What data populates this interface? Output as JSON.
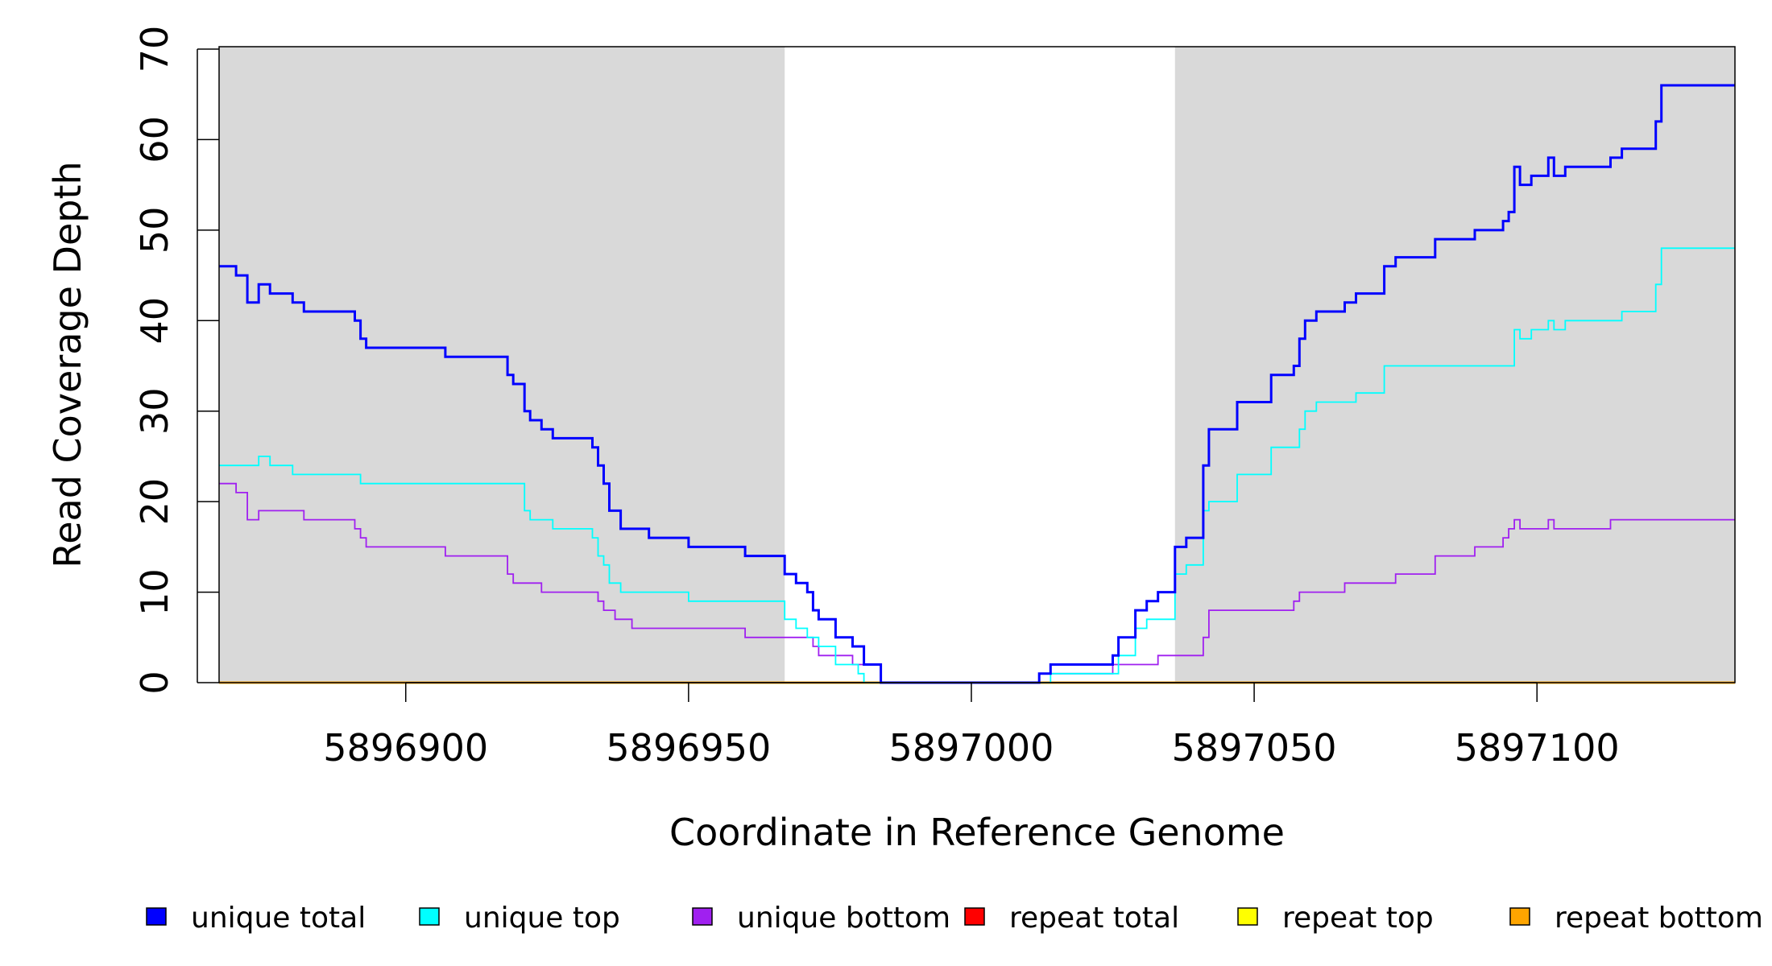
{
  "chart_data": {
    "type": "line",
    "line_shape": "step",
    "xlabel": "Coordinate in Reference Genome",
    "ylabel": "Read Coverage Depth",
    "xlim": [
      5896867,
      5897135
    ],
    "ylim": [
      0,
      70
    ],
    "x_ticks": [
      "5896900",
      "5896950",
      "5897000",
      "5897050",
      "5897100"
    ],
    "y_ticks": [
      "0",
      "10",
      "20",
      "30",
      "40",
      "50",
      "60",
      "70"
    ],
    "grid": false,
    "background_color": "#d9d9d9",
    "shaded_regions": [
      {
        "x": [
          5896867,
          5896967
        ],
        "color": "#d9d9d9"
      },
      {
        "x": [
          5897036,
          5897135
        ],
        "color": "#d9d9d9"
      }
    ],
    "legend_position": "bottom",
    "legend": [
      "unique total",
      "unique top",
      "unique bottom",
      "repeat total",
      "repeat top",
      "repeat bottom"
    ],
    "series": [
      {
        "name": "unique total",
        "color": "#0000ff",
        "points": [
          [
            5896867,
            46
          ],
          [
            5896870,
            45
          ],
          [
            5896872,
            42
          ],
          [
            5896874,
            44
          ],
          [
            5896876,
            43
          ],
          [
            5896880,
            42
          ],
          [
            5896882,
            41
          ],
          [
            5896891,
            40
          ],
          [
            5896892,
            38
          ],
          [
            5896893,
            37
          ],
          [
            5896907,
            36
          ],
          [
            5896918,
            34
          ],
          [
            5896919,
            33
          ],
          [
            5896921,
            30
          ],
          [
            5896922,
            29
          ],
          [
            5896924,
            28
          ],
          [
            5896926,
            27
          ],
          [
            5896933,
            26
          ],
          [
            5896934,
            24
          ],
          [
            5896935,
            22
          ],
          [
            5896936,
            19
          ],
          [
            5896938,
            17
          ],
          [
            5896943,
            16
          ],
          [
            5896950,
            15
          ],
          [
            5896960,
            14
          ],
          [
            5896967,
            12
          ],
          [
            5896969,
            11
          ],
          [
            5896971,
            10
          ],
          [
            5896972,
            8
          ],
          [
            5896973,
            7
          ],
          [
            5896976,
            5
          ],
          [
            5896979,
            4
          ],
          [
            5896981,
            2
          ],
          [
            5896984,
            0
          ],
          [
            5897012,
            1
          ],
          [
            5897014,
            2
          ],
          [
            5897025,
            3
          ],
          [
            5897026,
            5
          ],
          [
            5897029,
            8
          ],
          [
            5897031,
            9
          ],
          [
            5897033,
            10
          ],
          [
            5897036,
            15
          ],
          [
            5897038,
            16
          ],
          [
            5897041,
            24
          ],
          [
            5897042,
            28
          ],
          [
            5897047,
            31
          ],
          [
            5897053,
            34
          ],
          [
            5897057,
            35
          ],
          [
            5897058,
            38
          ],
          [
            5897059,
            40
          ],
          [
            5897061,
            41
          ],
          [
            5897066,
            42
          ],
          [
            5897068,
            43
          ],
          [
            5897073,
            46
          ],
          [
            5897075,
            47
          ],
          [
            5897082,
            49
          ],
          [
            5897089,
            50
          ],
          [
            5897094,
            51
          ],
          [
            5897095,
            52
          ],
          [
            5897096,
            57
          ],
          [
            5897097,
            55
          ],
          [
            5897099,
            56
          ],
          [
            5897102,
            58
          ],
          [
            5897103,
            56
          ],
          [
            5897105,
            57
          ],
          [
            5897113,
            58
          ],
          [
            5897115,
            59
          ],
          [
            5897121,
            62
          ],
          [
            5897122,
            66
          ],
          [
            5897135,
            66
          ]
        ]
      },
      {
        "name": "unique top",
        "color": "#00ffff",
        "points": [
          [
            5896867,
            24
          ],
          [
            5896874,
            25
          ],
          [
            5896876,
            24
          ],
          [
            5896880,
            23
          ],
          [
            5896892,
            22
          ],
          [
            5896921,
            19
          ],
          [
            5896922,
            18
          ],
          [
            5896926,
            17
          ],
          [
            5896933,
            16
          ],
          [
            5896934,
            14
          ],
          [
            5896935,
            13
          ],
          [
            5896936,
            11
          ],
          [
            5896938,
            10
          ],
          [
            5896950,
            9
          ],
          [
            5896967,
            7
          ],
          [
            5896969,
            6
          ],
          [
            5896971,
            5
          ],
          [
            5896973,
            4
          ],
          [
            5896976,
            2
          ],
          [
            5896980,
            1
          ],
          [
            5896981,
            0
          ],
          [
            5897014,
            1
          ],
          [
            5897026,
            3
          ],
          [
            5897029,
            6
          ],
          [
            5897031,
            7
          ],
          [
            5897036,
            12
          ],
          [
            5897038,
            13
          ],
          [
            5897041,
            19
          ],
          [
            5897042,
            20
          ],
          [
            5897047,
            23
          ],
          [
            5897053,
            26
          ],
          [
            5897058,
            28
          ],
          [
            5897059,
            30
          ],
          [
            5897061,
            31
          ],
          [
            5897068,
            32
          ],
          [
            5897073,
            35
          ],
          [
            5897096,
            39
          ],
          [
            5897097,
            38
          ],
          [
            5897099,
            39
          ],
          [
            5897102,
            40
          ],
          [
            5897103,
            39
          ],
          [
            5897105,
            40
          ],
          [
            5897115,
            41
          ],
          [
            5897121,
            44
          ],
          [
            5897122,
            48
          ],
          [
            5897135,
            48
          ]
        ]
      },
      {
        "name": "unique bottom",
        "color": "#a020f0",
        "points": [
          [
            5896867,
            22
          ],
          [
            5896870,
            21
          ],
          [
            5896872,
            18
          ],
          [
            5896874,
            19
          ],
          [
            5896882,
            18
          ],
          [
            5896891,
            17
          ],
          [
            5896892,
            16
          ],
          [
            5896893,
            15
          ],
          [
            5896907,
            14
          ],
          [
            5896918,
            12
          ],
          [
            5896919,
            11
          ],
          [
            5896924,
            10
          ],
          [
            5896934,
            9
          ],
          [
            5896935,
            8
          ],
          [
            5896937,
            7
          ],
          [
            5896940,
            6
          ],
          [
            5896960,
            5
          ],
          [
            5896972,
            4
          ],
          [
            5896973,
            3
          ],
          [
            5896979,
            2
          ],
          [
            5896984,
            0
          ],
          [
            5897012,
            1
          ],
          [
            5897025,
            2
          ],
          [
            5897033,
            3
          ],
          [
            5897041,
            5
          ],
          [
            5897042,
            8
          ],
          [
            5897057,
            9
          ],
          [
            5897058,
            10
          ],
          [
            5897066,
            11
          ],
          [
            5897075,
            12
          ],
          [
            5897082,
            14
          ],
          [
            5897089,
            15
          ],
          [
            5897094,
            16
          ],
          [
            5897095,
            17
          ],
          [
            5897096,
            18
          ],
          [
            5897097,
            17
          ],
          [
            5897102,
            18
          ],
          [
            5897103,
            17
          ],
          [
            5897113,
            18
          ],
          [
            5897135,
            18
          ]
        ]
      },
      {
        "name": "repeat total",
        "color": "#ff0000",
        "points": [
          [
            5896867,
            0
          ],
          [
            5897135,
            0
          ]
        ]
      },
      {
        "name": "repeat top",
        "color": "#ffff00",
        "points": [
          [
            5896867,
            0
          ],
          [
            5897135,
            0
          ]
        ]
      },
      {
        "name": "repeat bottom",
        "color": "#ffa500",
        "points": [
          [
            5896867,
            0
          ],
          [
            5897135,
            0
          ]
        ]
      }
    ]
  }
}
